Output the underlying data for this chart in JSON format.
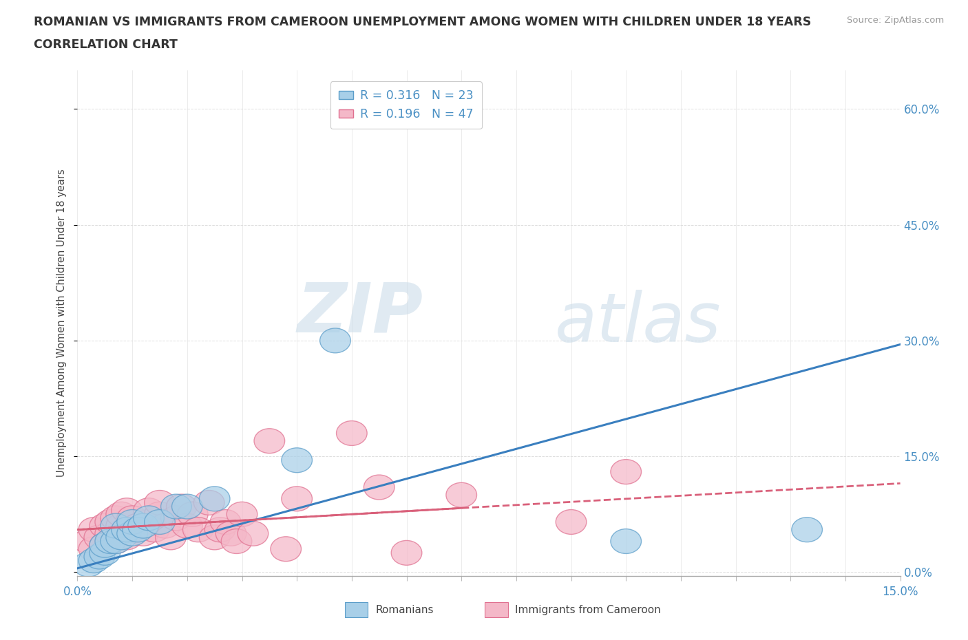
{
  "title_line1": "ROMANIAN VS IMMIGRANTS FROM CAMEROON UNEMPLOYMENT AMONG WOMEN WITH CHILDREN UNDER 18 YEARS",
  "title_line2": "CORRELATION CHART",
  "source_text": "Source: ZipAtlas.com",
  "ylabel": "Unemployment Among Women with Children Under 18 years",
  "xlim": [
    0.0,
    0.15
  ],
  "ylim": [
    -0.005,
    0.65
  ],
  "ytick_labels": [
    "0.0%",
    "15.0%",
    "30.0%",
    "45.0%",
    "60.0%"
  ],
  "ytick_values": [
    0.0,
    0.15,
    0.3,
    0.45,
    0.6
  ],
  "romanians_color": "#a8cfe8",
  "cameroon_color": "#f4b8c8",
  "romanians_edge": "#5b9dc9",
  "cameroon_edge": "#e07090",
  "R_romanians": 0.316,
  "N_romanians": 23,
  "R_cameroon": 0.196,
  "N_cameroon": 47,
  "watermark_zip": "ZIP",
  "watermark_atlas": "atlas",
  "legend_label1": "Romanians",
  "legend_label2": "Immigrants from Cameroon",
  "romanians_x": [
    0.002,
    0.003,
    0.004,
    0.005,
    0.005,
    0.006,
    0.007,
    0.007,
    0.008,
    0.009,
    0.01,
    0.01,
    0.011,
    0.012,
    0.013,
    0.015,
    0.018,
    0.02,
    0.025,
    0.04,
    0.047,
    0.1,
    0.133
  ],
  "romanians_y": [
    0.01,
    0.015,
    0.02,
    0.025,
    0.035,
    0.04,
    0.04,
    0.06,
    0.045,
    0.055,
    0.05,
    0.065,
    0.055,
    0.06,
    0.07,
    0.065,
    0.085,
    0.085,
    0.095,
    0.145,
    0.3,
    0.04,
    0.055
  ],
  "cameroon_x": [
    0.002,
    0.003,
    0.003,
    0.004,
    0.005,
    0.005,
    0.006,
    0.006,
    0.007,
    0.007,
    0.008,
    0.008,
    0.009,
    0.009,
    0.01,
    0.01,
    0.011,
    0.012,
    0.013,
    0.013,
    0.014,
    0.015,
    0.015,
    0.016,
    0.017,
    0.018,
    0.019,
    0.02,
    0.021,
    0.022,
    0.024,
    0.025,
    0.026,
    0.027,
    0.028,
    0.029,
    0.03,
    0.032,
    0.035,
    0.038,
    0.04,
    0.05,
    0.055,
    0.06,
    0.07,
    0.09,
    0.1
  ],
  "cameroon_y": [
    0.04,
    0.03,
    0.055,
    0.045,
    0.035,
    0.06,
    0.05,
    0.065,
    0.04,
    0.07,
    0.06,
    0.075,
    0.045,
    0.08,
    0.055,
    0.07,
    0.06,
    0.05,
    0.065,
    0.08,
    0.055,
    0.075,
    0.09,
    0.06,
    0.045,
    0.07,
    0.085,
    0.06,
    0.075,
    0.055,
    0.09,
    0.045,
    0.055,
    0.065,
    0.05,
    0.04,
    0.075,
    0.05,
    0.17,
    0.03,
    0.095,
    0.18,
    0.11,
    0.025,
    0.1,
    0.065,
    0.13
  ],
  "background_color": "#ffffff",
  "grid_color": "#dddddd",
  "trendline_blue_color": "#3a7fbf",
  "trendline_pink_color": "#d9607a",
  "rom_trend_x0": 0.0,
  "rom_trend_y0": 0.005,
  "rom_trend_x1": 0.15,
  "rom_trend_y1": 0.295,
  "cam_trend_x0": 0.0,
  "cam_trend_y0": 0.055,
  "cam_trend_x1": 0.15,
  "cam_trend_y1": 0.115
}
